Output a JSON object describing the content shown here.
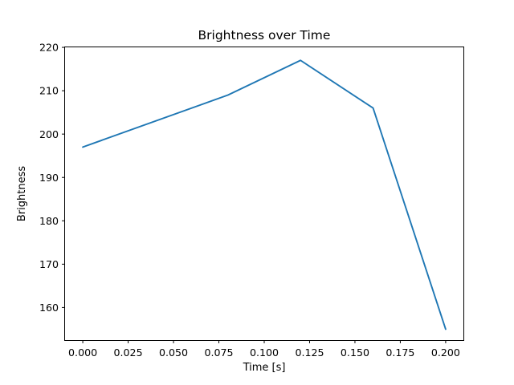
{
  "chart_data": {
    "type": "line",
    "title": "Brightness over Time",
    "xlabel": "Time [s]",
    "ylabel": "Brightness",
    "series": [
      {
        "name": "Brightness",
        "x": [
          0.0,
          0.08,
          0.12,
          0.16,
          0.2
        ],
        "y": [
          197,
          209,
          217,
          206,
          155
        ]
      }
    ],
    "xlim": [
      -0.01,
      0.21
    ],
    "ylim": [
      152.4,
      220.1
    ],
    "xticks": [
      0.0,
      0.025,
      0.05,
      0.075,
      0.1,
      0.125,
      0.15,
      0.175,
      0.2
    ],
    "xtick_labels": [
      "0.000",
      "0.025",
      "0.050",
      "0.075",
      "0.100",
      "0.125",
      "0.150",
      "0.175",
      "0.200"
    ],
    "yticks": [
      160,
      170,
      180,
      190,
      200,
      210,
      220
    ],
    "ytick_labels": [
      "160",
      "170",
      "180",
      "190",
      "200",
      "210",
      "220"
    ],
    "grid": false,
    "legend_position": "none",
    "line_color": "#1f77b4",
    "axis_color": "#000000",
    "background_color": "#ffffff"
  }
}
